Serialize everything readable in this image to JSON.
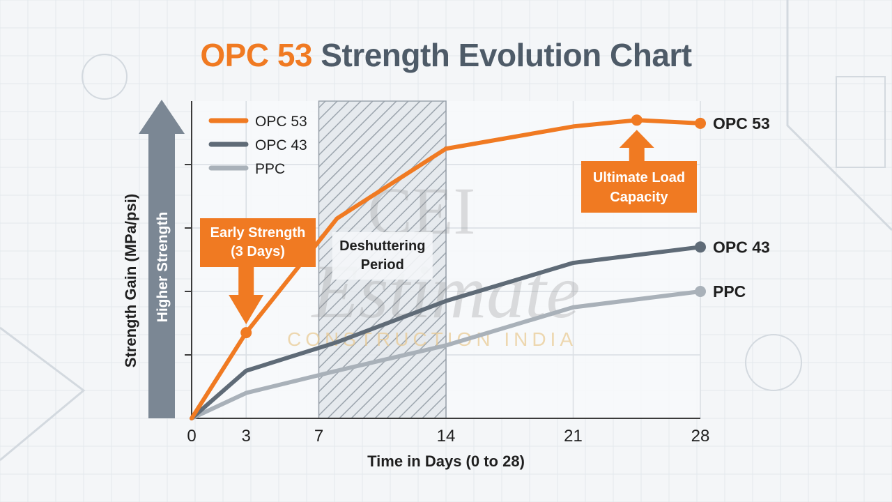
{
  "title": {
    "accent": "OPC 53",
    "rest": "Strength Evolution Chart"
  },
  "colors": {
    "opc53": "#f07a22",
    "opc43": "#5f6b77",
    "ppc": "#a9b1b9",
    "band": "#8c96a0",
    "arrow": "#7b8794"
  },
  "chart_data": {
    "type": "line",
    "title": "OPC 53 Strength Evolution Chart",
    "xlabel": "Time in Days (0 to 28)",
    "ylabel": "Strength Gain (MPa/psi)",
    "x_ticks": [
      0,
      3,
      7,
      14,
      21,
      28
    ],
    "xlim": [
      0,
      28
    ],
    "ylim": [
      0,
      100
    ],
    "grid": true,
    "legend": "top-left",
    "series": [
      {
        "name": "OPC 53",
        "x": [
          0,
          3,
          8,
          14,
          21,
          24.5,
          28
        ],
        "y": [
          0,
          27,
          63,
          85,
          92,
          94,
          93
        ],
        "markers": [
          3,
          24.5,
          28
        ]
      },
      {
        "name": "OPC 43",
        "x": [
          0,
          3,
          8,
          14,
          21,
          28
        ],
        "y": [
          0,
          15,
          24,
          37,
          49,
          54
        ],
        "markers": [
          28
        ]
      },
      {
        "name": "PPC",
        "x": [
          0,
          3,
          8,
          14,
          21,
          28
        ],
        "y": [
          0,
          8,
          15,
          23,
          35,
          40
        ],
        "markers": [
          28
        ]
      }
    ],
    "shaded_region": {
      "x": [
        7,
        14
      ],
      "label": [
        "Deshuttering",
        "Period"
      ]
    },
    "callouts": [
      {
        "label": [
          "Early Strength",
          "(3 Days)"
        ],
        "x": 3,
        "series": "OPC 53"
      },
      {
        "label": [
          "Ultimate Load",
          "Capacity"
        ],
        "x": 24.5,
        "series": "OPC 53"
      }
    ],
    "y_arrow_label": "Higher Strength",
    "end_labels": [
      "OPC 53",
      "OPC 43",
      "PPC"
    ]
  },
  "watermark": {
    "main": "CEI",
    "script": "Estimate",
    "sub": "CONSTRUCTION INDIA"
  }
}
